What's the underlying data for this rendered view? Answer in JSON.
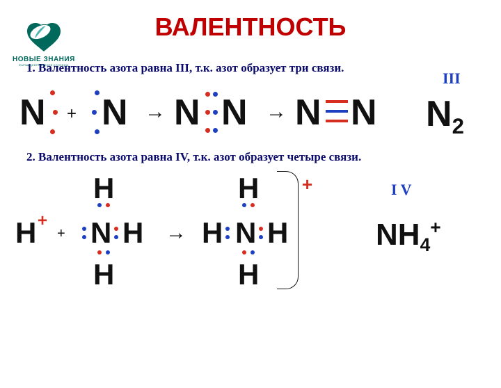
{
  "logo": {
    "brand": "НОВЫЕ ЗНАНИЯ",
    "subtitle": "ФАРМАЦЕВТИЧЕСКИЙ КОЛЛЕДЖ",
    "color_dark": "#00695c",
    "color_light": "#4db6ac"
  },
  "title": {
    "text": "ВАЛЕНТНОСТЬ",
    "color": "#c00000",
    "fontsize": 36
  },
  "rule1": {
    "text": "1. Валентность азота равна III, т.к. азот образует три связи.",
    "color": "#0a0a6b",
    "fontsize": 17
  },
  "rule2": {
    "text": "2. Валентность азота равна IV, т.к. азот образует четыре связи.",
    "color": "#0a0a6b",
    "fontsize": 17
  },
  "atoms": {
    "N": "N",
    "H": "H"
  },
  "ops": {
    "plus": "+",
    "arrow": "→"
  },
  "colors": {
    "atom": "#111111",
    "dot_red": "#d62d20",
    "dot_blue": "#1e3fbf",
    "bond_red": "#d62d20",
    "bond_blue": "#1e3fbf",
    "roman": "#1e3fbf",
    "formula": "#111111",
    "plus_charge": "#d62d20"
  },
  "sizes": {
    "atom_fs": 52,
    "atom_fs_small": 42,
    "dot": 7,
    "dot_sm": 6,
    "op_fs": 24,
    "arrow_fs": 30,
    "roman_fs": 22,
    "formula_fs": 52,
    "formula_fs2": 44,
    "bond_w": 32,
    "bond_h": 4
  },
  "result1": {
    "roman": "III",
    "formula_base": "N",
    "formula_sub": "2"
  },
  "result2": {
    "roman": "I V",
    "formula_base": "NH",
    "formula_sub": "4",
    "formula_sup": "+"
  }
}
